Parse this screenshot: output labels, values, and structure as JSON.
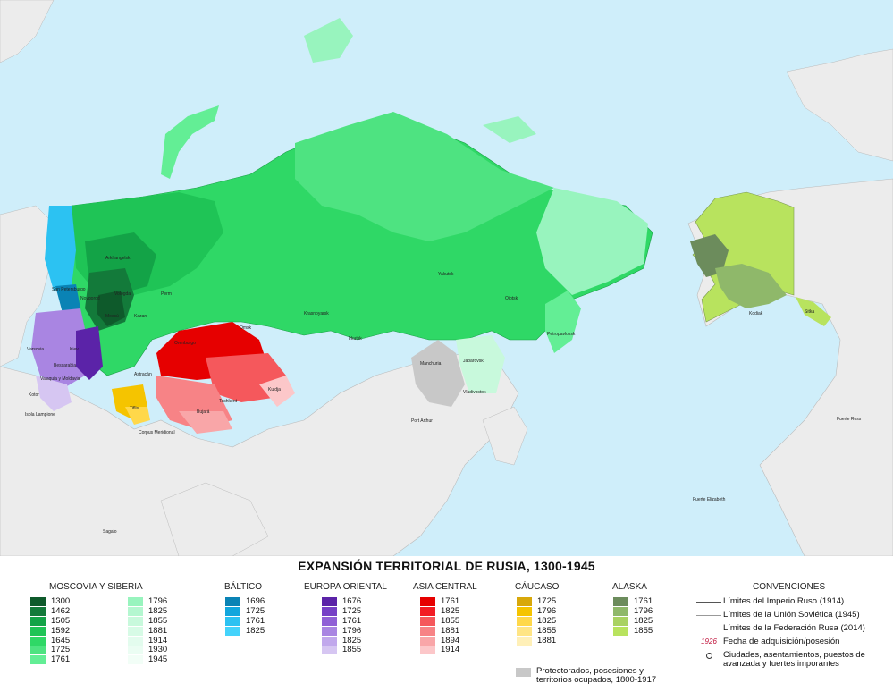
{
  "title": "EXPANSIÓN TERRITORIAL DE RUSIA, 1300-1945",
  "legend": {
    "moscovia": {
      "title": "MOSCOVIA Y SIBERIA",
      "col1": [
        {
          "year": "1300",
          "color": "#0e5a2b"
        },
        {
          "year": "1462",
          "color": "#137a3a"
        },
        {
          "year": "1505",
          "color": "#13a347"
        },
        {
          "year": "1592",
          "color": "#1fc456"
        },
        {
          "year": "1645",
          "color": "#2fd866"
        },
        {
          "year": "1725",
          "color": "#4ee381"
        },
        {
          "year": "1761",
          "color": "#63ee95"
        }
      ],
      "col2": [
        {
          "year": "1796",
          "color": "#98f4be"
        },
        {
          "year": "1825",
          "color": "#b4f7d0"
        },
        {
          "year": "1855",
          "color": "#c8f9dc"
        },
        {
          "year": "1881",
          "color": "#d7fbe6"
        },
        {
          "year": "1914",
          "color": "#e3fcee"
        },
        {
          "year": "1930",
          "color": "#ebfdf3"
        },
        {
          "year": "1945",
          "color": "#f2fef7"
        }
      ]
    },
    "baltico": {
      "title": "BÁLTICO",
      "items": [
        {
          "year": "1696",
          "color": "#0a83b5"
        },
        {
          "year": "1725",
          "color": "#12a6dd"
        },
        {
          "year": "1761",
          "color": "#2cc2f2"
        },
        {
          "year": "1825",
          "color": "#44d3fb"
        }
      ]
    },
    "europa": {
      "title": "EUROPA ORIENTAL",
      "items": [
        {
          "year": "1676",
          "color": "#5b23a8"
        },
        {
          "year": "1725",
          "color": "#7640c6"
        },
        {
          "year": "1761",
          "color": "#9060d6"
        },
        {
          "year": "1796",
          "color": "#a985e2"
        },
        {
          "year": "1825",
          "color": "#c1a8ec"
        },
        {
          "year": "1855",
          "color": "#d6c6f2"
        }
      ]
    },
    "asia": {
      "title": "ASIA CENTRAL",
      "items": [
        {
          "year": "1761",
          "color": "#e60000"
        },
        {
          "year": "1825",
          "color": "#f21c24"
        },
        {
          "year": "1855",
          "color": "#f5585c"
        },
        {
          "year": "1881",
          "color": "#f78386"
        },
        {
          "year": "1894",
          "color": "#f9a6a8"
        },
        {
          "year": "1914",
          "color": "#fcc7c9"
        }
      ]
    },
    "caucaso": {
      "title": "CÁUCASO",
      "items": [
        {
          "year": "1725",
          "color": "#d8a80a"
        },
        {
          "year": "1796",
          "color": "#f5c400"
        },
        {
          "year": "1825",
          "color": "#ffd84a"
        },
        {
          "year": "1855",
          "color": "#ffe585"
        },
        {
          "year": "1881",
          "color": "#fff0b8"
        }
      ]
    },
    "alaska": {
      "title": "ALASKA",
      "items": [
        {
          "year": "1761",
          "color": "#6c8c5c"
        },
        {
          "year": "1796",
          "color": "#8fb86a"
        },
        {
          "year": "1825",
          "color": "#a9d262"
        },
        {
          "year": "1855",
          "color": "#b8e35e"
        }
      ]
    },
    "protectorados": {
      "label_line1": "Protectorados, posesiones y",
      "label_line2": "territorios ocupados, 1800-1917",
      "color": "#c8c8c8"
    },
    "convenciones": {
      "title": "CONVENCIONES",
      "items": [
        {
          "type": "line",
          "color": "#555555",
          "label": "Límites del Imperio Ruso (1914)"
        },
        {
          "type": "line",
          "color": "#999999",
          "label": "Límites de la Unión Soviética (1945)"
        },
        {
          "type": "line",
          "color": "#cccccc",
          "label": "Límites de la Federación Rusa (2014)"
        },
        {
          "type": "date",
          "sample": "1926",
          "label": "Fecha de adquisición/posesión"
        },
        {
          "type": "circle",
          "label": "Ciudades, asentamientos, puestos de avanzada y fuertes imporantes"
        }
      ]
    }
  },
  "map": {
    "colors": {
      "ocean": "#cfeefa",
      "land": "#ececec"
    },
    "places": [
      {
        "name": "Arkhangelsk"
      },
      {
        "name": "San Petersburgo"
      },
      {
        "name": "Vologda"
      },
      {
        "name": "Novgorod"
      },
      {
        "name": "Moscú"
      },
      {
        "name": "Kazan"
      },
      {
        "name": "Perm"
      },
      {
        "name": "Kiev"
      },
      {
        "name": "Astracán"
      },
      {
        "name": "Orenburgo"
      },
      {
        "name": "Omsk"
      },
      {
        "name": "Tashkent"
      },
      {
        "name": "Bujará"
      },
      {
        "name": "Kuldja"
      },
      {
        "name": "Krasnoyarsk"
      },
      {
        "name": "Irkutsk"
      },
      {
        "name": "Yakutsk"
      },
      {
        "name": "Ojotsk"
      },
      {
        "name": "Petropavlovsk"
      },
      {
        "name": "Jabárovsk"
      },
      {
        "name": "Vladivostok"
      },
      {
        "name": "Manchuria"
      },
      {
        "name": "Port Arthur"
      },
      {
        "name": "Sitka"
      },
      {
        "name": "Kodiak"
      },
      {
        "name": "Fuerte Ross"
      },
      {
        "name": "Fuerte Elizabeth"
      },
      {
        "name": "Sagalo"
      },
      {
        "name": "Corpus Meridional"
      },
      {
        "name": "Tiflis"
      },
      {
        "name": "Kotor"
      },
      {
        "name": "Isola Lampione"
      },
      {
        "name": "Varsovia"
      },
      {
        "name": "Valaquia y Moldavia"
      },
      {
        "name": "Bessarabia"
      }
    ]
  }
}
